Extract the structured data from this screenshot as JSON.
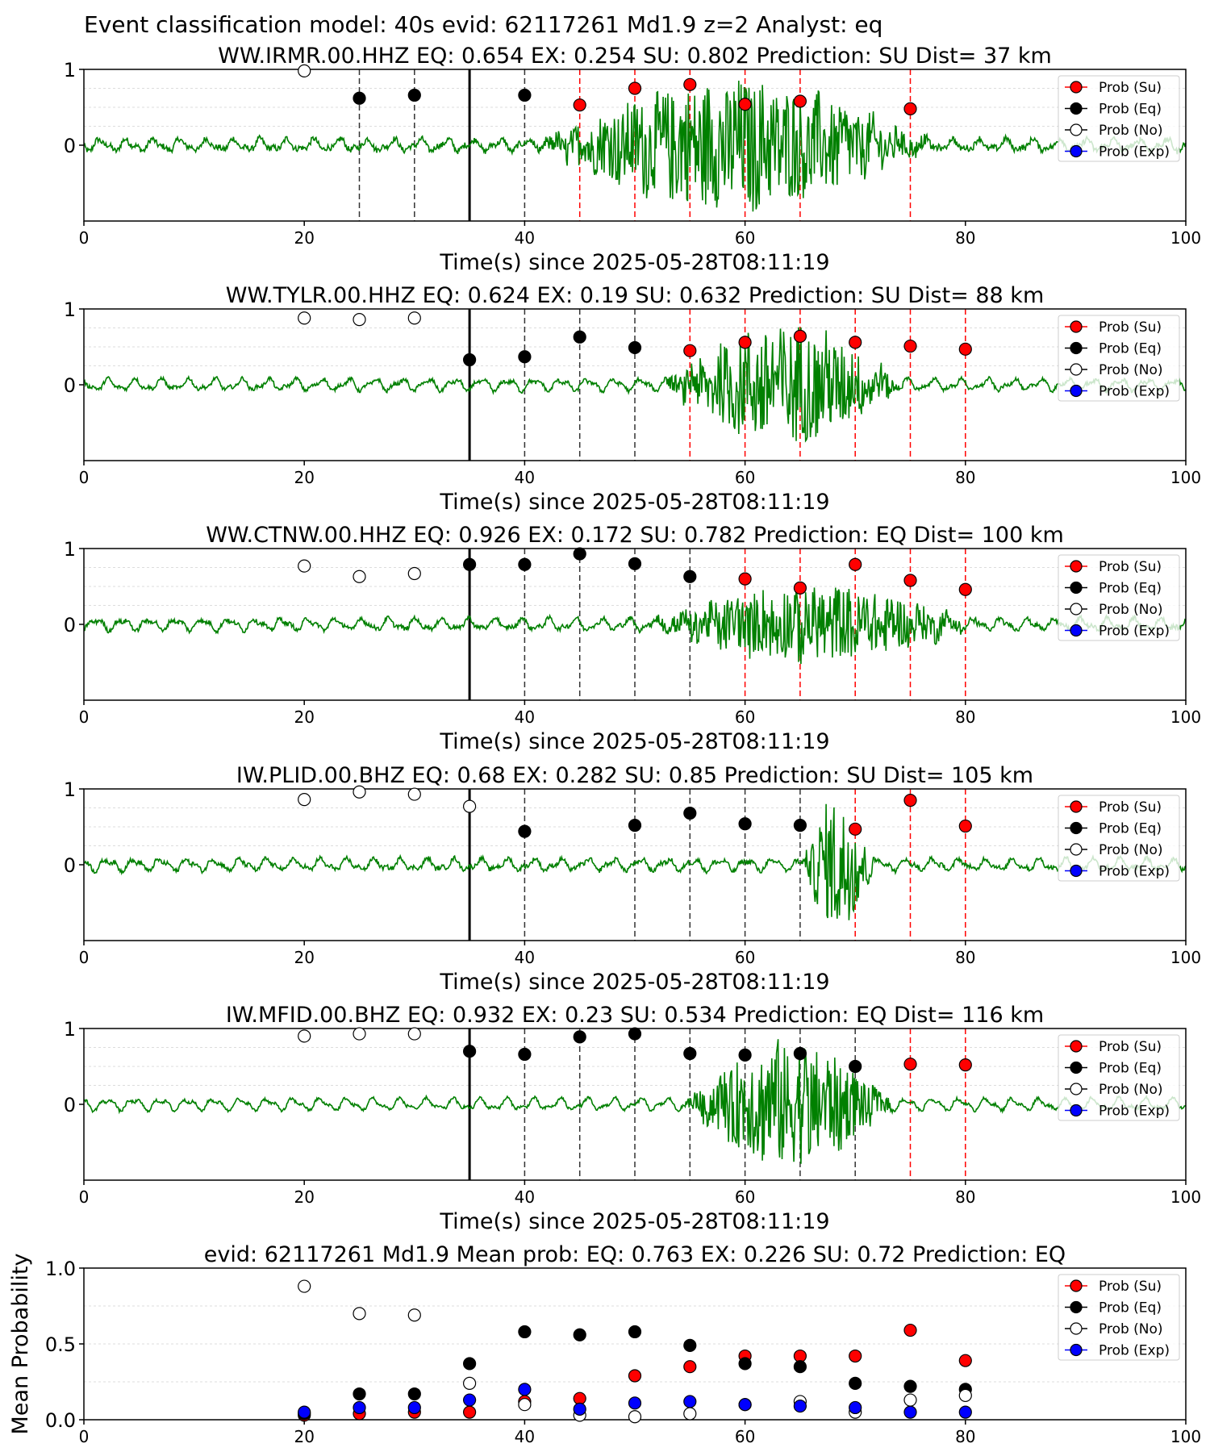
{
  "figure": {
    "suptitle": "Event classification model: 40s evid: 62117261 Md1.9 z=2 Analyst: eq"
  },
  "legend_labels": [
    "Prob (Su)",
    "Prob (Eq)",
    "Prob (No)",
    "Prob (Exp)"
  ],
  "colors": {
    "su": "#ff0000",
    "eq": "#000000",
    "no": "#ffffff",
    "exp": "#0000ff",
    "trace": "#008000",
    "su_line": "#ff0000",
    "eq_line": "#333333"
  },
  "chart_data": [
    {
      "type": "scatter",
      "title": "WW.IRMR.00.HHZ   EQ: 0.654  EX: 0.254  SU: 0.802   Prediction: SU    Dist= 37 km",
      "xlabel": "Time(s) since 2025-05-28T08:11:19",
      "ylabel": "",
      "xlim": [
        0,
        100
      ],
      "ylim": [
        -1,
        1
      ],
      "xticks": [
        "0",
        "20",
        "40",
        "60",
        "80",
        "100"
      ],
      "yticks": [
        "0",
        "1"
      ],
      "arrival_time": 35,
      "legend": "right",
      "series": [
        {
          "name": "Prob (Su)",
          "x": [
            45,
            50,
            55,
            60,
            65,
            75
          ],
          "y": [
            0.53,
            0.75,
            0.8,
            0.54,
            0.58,
            0.48
          ]
        },
        {
          "name": "Prob (Eq)",
          "x": [
            25,
            30,
            40
          ],
          "y": [
            0.62,
            0.66,
            0.66
          ]
        },
        {
          "name": "Prob (No)",
          "x": [
            20
          ],
          "y": [
            0.98
          ]
        },
        {
          "name": "Prob (Exp)",
          "x": [],
          "y": []
        }
      ],
      "trace": {
        "signal_start": 40,
        "signal_end": 78,
        "amplitude": 0.85,
        "noise": 0.08
      }
    },
    {
      "type": "scatter",
      "title": "WW.TYLR.00.HHZ   EQ: 0.624  EX: 0.19  SU: 0.632   Prediction: SU    Dist= 88 km",
      "xlabel": "Time(s) since 2025-05-28T08:11:19",
      "ylabel": "",
      "xlim": [
        0,
        100
      ],
      "ylim": [
        -1,
        1
      ],
      "xticks": [
        "0",
        "20",
        "40",
        "60",
        "80",
        "100"
      ],
      "yticks": [
        "0",
        "1"
      ],
      "arrival_time": 35,
      "legend": "right",
      "series": [
        {
          "name": "Prob (Su)",
          "x": [
            55,
            60,
            65,
            70,
            75,
            80
          ],
          "y": [
            0.45,
            0.56,
            0.64,
            0.56,
            0.51,
            0.47
          ]
        },
        {
          "name": "Prob (Eq)",
          "x": [
            35,
            40,
            45,
            50
          ],
          "y": [
            0.33,
            0.37,
            0.63,
            0.49
          ]
        },
        {
          "name": "Prob (No)",
          "x": [
            20,
            25,
            30
          ],
          "y": [
            0.88,
            0.86,
            0.88
          ]
        },
        {
          "name": "Prob (Exp)",
          "x": [],
          "y": []
        }
      ],
      "trace": {
        "signal_start": 52,
        "signal_end": 75,
        "amplitude": 0.8,
        "noise": 0.05
      }
    },
    {
      "type": "scatter",
      "title": "WW.CTNW.00.HHZ   EQ: 0.926  EX: 0.172  SU: 0.782   Prediction: EQ    Dist= 100 km",
      "xlabel": "Time(s) since 2025-05-28T08:11:19",
      "ylabel": "",
      "xlim": [
        0,
        100
      ],
      "ylim": [
        -1,
        1
      ],
      "xticks": [
        "0",
        "20",
        "40",
        "60",
        "80",
        "100"
      ],
      "yticks": [
        "0",
        "1"
      ],
      "arrival_time": 35,
      "legend": "right",
      "series": [
        {
          "name": "Prob (Su)",
          "x": [
            60,
            65,
            70,
            75,
            80
          ],
          "y": [
            0.6,
            0.48,
            0.79,
            0.58,
            0.46
          ]
        },
        {
          "name": "Prob (Eq)",
          "x": [
            35,
            40,
            45,
            50,
            55
          ],
          "y": [
            0.79,
            0.79,
            0.93,
            0.8,
            0.63
          ]
        },
        {
          "name": "Prob (No)",
          "x": [
            20,
            25,
            30
          ],
          "y": [
            0.77,
            0.63,
            0.67
          ]
        },
        {
          "name": "Prob (Exp)",
          "x": [],
          "y": []
        }
      ],
      "trace": {
        "signal_start": 50,
        "signal_end": 82,
        "amplitude": 0.5,
        "noise": 0.06
      }
    },
    {
      "type": "scatter",
      "title": "IW.PLID.00.BHZ   EQ: 0.68  EX: 0.282  SU: 0.85   Prediction: SU    Dist= 105 km",
      "xlabel": "Time(s) since 2025-05-28T08:11:19",
      "ylabel": "",
      "xlim": [
        0,
        100
      ],
      "ylim": [
        -1,
        1
      ],
      "xticks": [
        "0",
        "20",
        "40",
        "60",
        "80",
        "100"
      ],
      "yticks": [
        "0",
        "1"
      ],
      "arrival_time": 35,
      "legend": "right",
      "series": [
        {
          "name": "Prob (Su)",
          "x": [
            70,
            75,
            80
          ],
          "y": [
            0.47,
            0.85,
            0.51
          ]
        },
        {
          "name": "Prob (Eq)",
          "x": [
            40,
            50,
            55,
            60,
            65
          ],
          "y": [
            0.44,
            0.52,
            0.68,
            0.54,
            0.52
          ]
        },
        {
          "name": "Prob (No)",
          "x": [
            20,
            25,
            30,
            35
          ],
          "y": [
            0.86,
            0.96,
            0.93,
            0.77
          ]
        },
        {
          "name": "Prob (Exp)",
          "x": [],
          "y": []
        }
      ],
      "trace": {
        "signal_start": 65,
        "signal_end": 72,
        "amplitude": 0.9,
        "noise": 0.06
      }
    },
    {
      "type": "scatter",
      "title": "IW.MFID.00.BHZ   EQ: 0.932  EX: 0.23  SU: 0.534   Prediction: EQ    Dist= 116 km",
      "xlabel": "Time(s) since 2025-05-28T08:11:19",
      "ylabel": "",
      "xlim": [
        0,
        100
      ],
      "ylim": [
        -1,
        1
      ],
      "xticks": [
        "0",
        "20",
        "40",
        "60",
        "80",
        "100"
      ],
      "yticks": [
        "0",
        "1"
      ],
      "arrival_time": 35,
      "legend": "right",
      "series": [
        {
          "name": "Prob (Su)",
          "x": [
            75,
            80
          ],
          "y": [
            0.53,
            0.52
          ]
        },
        {
          "name": "Prob (Eq)",
          "x": [
            35,
            40,
            45,
            50,
            55,
            60,
            65,
            70
          ],
          "y": [
            0.7,
            0.66,
            0.89,
            0.93,
            0.67,
            0.65,
            0.67,
            0.5
          ]
        },
        {
          "name": "Prob (No)",
          "x": [
            20,
            25,
            30
          ],
          "y": [
            0.9,
            0.93,
            0.93
          ]
        },
        {
          "name": "Prob (Exp)",
          "x": [],
          "y": []
        }
      ],
      "trace": {
        "signal_start": 54,
        "signal_end": 74,
        "amplitude": 0.85,
        "noise": 0.04
      }
    },
    {
      "type": "scatter",
      "title": "evid: 62117261  Md1.9   Mean prob:   EQ: 0.763  EX: 0.226  SU: 0.72   Prediction: EQ",
      "xlabel": "",
      "ylabel": "Mean Probability",
      "xlim": [
        0,
        100
      ],
      "ylim": [
        0,
        1
      ],
      "xticks": [
        "0",
        "20",
        "40",
        "60",
        "80",
        "100"
      ],
      "yticks": [
        "0.0",
        "0.5",
        "1.0"
      ],
      "legend": "right",
      "series": [
        {
          "name": "Prob (Su)",
          "x": [
            20,
            25,
            30,
            35,
            40,
            45,
            50,
            55,
            60,
            65,
            70,
            75,
            80
          ],
          "y": [
            0.03,
            0.04,
            0.05,
            0.05,
            0.12,
            0.14,
            0.29,
            0.35,
            0.42,
            0.42,
            0.42,
            0.59,
            0.39
          ]
        },
        {
          "name": "Prob (Eq)",
          "x": [
            20,
            25,
            30,
            35,
            40,
            45,
            50,
            55,
            60,
            65,
            70,
            75,
            80
          ],
          "y": [
            0.04,
            0.17,
            0.17,
            0.37,
            0.58,
            0.56,
            0.58,
            0.49,
            0.37,
            0.35,
            0.24,
            0.22,
            0.2
          ]
        },
        {
          "name": "Prob (No)",
          "x": [
            20,
            25,
            30,
            35,
            40,
            45,
            50,
            55,
            60,
            65,
            70,
            75,
            80
          ],
          "y": [
            0.88,
            0.7,
            0.69,
            0.24,
            0.1,
            0.03,
            0.02,
            0.04,
            0.1,
            0.12,
            0.05,
            0.13,
            0.16
          ]
        },
        {
          "name": "Prob (Exp)",
          "x": [
            20,
            25,
            30,
            35,
            40,
            45,
            50,
            55,
            60,
            65,
            70,
            75,
            80
          ],
          "y": [
            0.05,
            0.08,
            0.08,
            0.13,
            0.2,
            0.07,
            0.11,
            0.12,
            0.1,
            0.09,
            0.08,
            0.05,
            0.05
          ]
        }
      ]
    }
  ]
}
